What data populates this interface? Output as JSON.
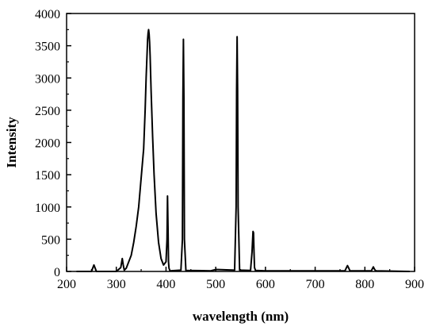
{
  "chart_data": {
    "type": "line",
    "title": "",
    "xlabel": "wavelength (nm)",
    "ylabel": "Intensity",
    "xlim": [
      200,
      900
    ],
    "ylim": [
      0,
      4000
    ],
    "xticks": [
      200,
      300,
      400,
      500,
      600,
      700,
      800,
      900
    ],
    "yticks": [
      0,
      500,
      1000,
      1500,
      2000,
      2500,
      3000,
      3500,
      4000
    ],
    "grid": false,
    "legend": "none",
    "color": "#000000",
    "series": [
      {
        "x": [
          220,
          250,
          253,
          255,
          257,
          260,
          300,
          309,
          312,
          314,
          316,
          320,
          330,
          335,
          340,
          345,
          350,
          355,
          358,
          360,
          362,
          363,
          364,
          365,
          366,
          367,
          368,
          370,
          373,
          376,
          380,
          385,
          390,
          395,
          400,
          402,
          403,
          404,
          405,
          406,
          408,
          430,
          433,
          434,
          435,
          436,
          437,
          440,
          490,
          500,
          538,
          541,
          542,
          543,
          544,
          545,
          548,
          570,
          573,
          575,
          576,
          577,
          578,
          580,
          600,
          700,
          760,
          763,
          765,
          767,
          770,
          813,
          815,
          817,
          819,
          821,
          823,
          890
        ],
        "y": [
          0,
          0,
          60,
          100,
          60,
          0,
          0,
          60,
          200,
          100,
          20,
          50,
          250,
          450,
          700,
          1000,
          1450,
          1900,
          2500,
          3000,
          3400,
          3600,
          3700,
          3750,
          3680,
          3550,
          3350,
          2800,
          2100,
          1500,
          900,
          450,
          200,
          100,
          150,
          500,
          1170,
          700,
          150,
          50,
          10,
          20,
          500,
          2700,
          3600,
          2700,
          500,
          15,
          10,
          30,
          20,
          1000,
          2800,
          3640,
          2800,
          1000,
          20,
          15,
          300,
          620,
          600,
          300,
          60,
          15,
          10,
          10,
          10,
          60,
          90,
          60,
          10,
          10,
          40,
          70,
          40,
          15,
          10,
          0
        ]
      }
    ]
  }
}
